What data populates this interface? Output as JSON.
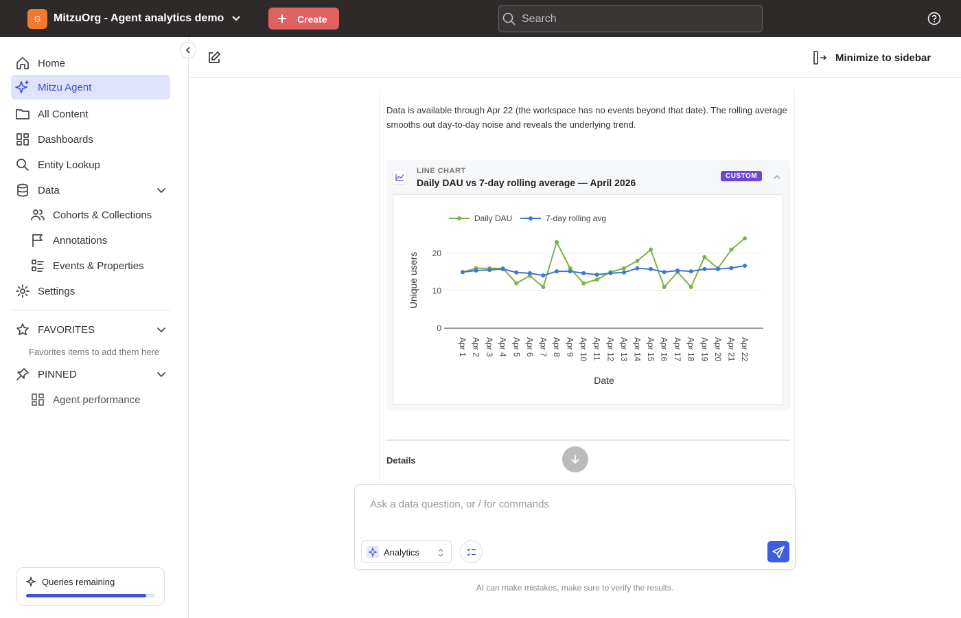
{
  "header": {
    "org_initial": "G",
    "org_name": "MitzuOrg - Agent analytics demo",
    "create": "Create",
    "search_placeholder": "Search"
  },
  "sidebar": {
    "nav": [
      "Home",
      "Mitzu Agent",
      "All Content",
      "Dashboards",
      "Entity Lookup",
      "Data"
    ],
    "data_children": [
      "Cohorts & Collections",
      "Annotations",
      "Events & Properties"
    ],
    "settings": "Settings",
    "favorites": {
      "title": "FAVORITES",
      "empty": "Favorites items to add them here"
    },
    "pinned": {
      "title": "PINNED",
      "items": [
        "Agent performance"
      ]
    },
    "queries": {
      "label": "Queries remaining",
      "progress": 93
    }
  },
  "toolbar": {
    "minimize": "Minimize to sidebar"
  },
  "message": {
    "text": "Data is available through Apr 22 (the workspace has no events beyond that date). The rolling average smooths out day-to-day noise and reveals the underlying trend.",
    "chart_kind": "LINE CHART",
    "badge": "CUSTOM",
    "details": "Details"
  },
  "chart_data": {
    "type": "line",
    "title": "Daily DAU vs 7-day rolling average — April 2026",
    "x_label": "Date",
    "y_label": "Unique users",
    "categories": [
      "Apr 1",
      "Apr 2",
      "Apr 3",
      "Apr 4",
      "Apr 5",
      "Apr 6",
      "Apr 7",
      "Apr 8",
      "Apr 9",
      "Apr 10",
      "Apr 11",
      "Apr 12",
      "Apr 13",
      "Apr 14",
      "Apr 15",
      "Apr 16",
      "Apr 17",
      "Apr 18",
      "Apr 19",
      "Apr 20",
      "Apr 21",
      "Apr 22"
    ],
    "series": [
      {
        "name": "Daily DAU",
        "color": "#7cb342",
        "values": [
          15,
          16,
          16,
          16,
          12,
          14,
          11,
          23,
          16,
          12,
          13,
          15,
          16,
          18,
          21,
          11,
          15,
          11,
          19,
          16,
          21,
          24
        ]
      },
      {
        "name": "7-day rolling avg",
        "color": "#3b78d0",
        "values": [
          15.0,
          15.4,
          15.6,
          15.8,
          14.9,
          14.7,
          14.1,
          15.2,
          15.2,
          14.7,
          14.3,
          14.7,
          14.9,
          16.0,
          15.8,
          15.0,
          15.4,
          15.2,
          15.8,
          15.8,
          16.1,
          16.7
        ]
      }
    ],
    "ylim": [
      0,
      25.5
    ],
    "yticks": [
      0,
      10,
      20
    ],
    "grid": true
  },
  "composer": {
    "placeholder": "Ask a data question, or / for commands",
    "mode": "Analytics",
    "disclaimer": "AI can make mistakes, make sure to verify the results."
  }
}
